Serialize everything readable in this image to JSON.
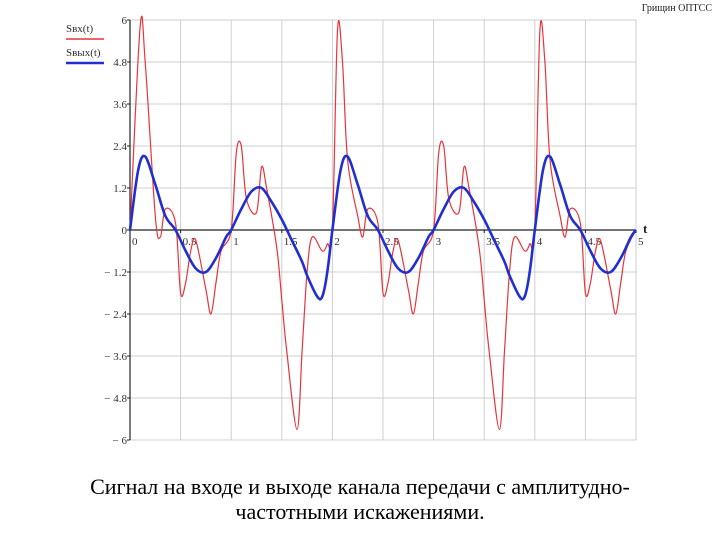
{
  "header": {
    "text": "Грищин ОПТСС"
  },
  "caption": {
    "line1": "Сигнал на входе и выходе канала передачи с амплитудно-",
    "line2": "частотными искажениями."
  },
  "chart_data": {
    "type": "line",
    "xlabel": "t",
    "xlim": [
      0,
      5
    ],
    "ylim": [
      -6,
      6
    ],
    "grid": true,
    "legend_position": "top-left",
    "x_ticks": [
      {
        "value": 0,
        "label": "0"
      },
      {
        "value": 0.5,
        "label": "0.5"
      },
      {
        "value": 1,
        "label": "1"
      },
      {
        "value": 1.5,
        "label": "1.5"
      },
      {
        "value": 2,
        "label": "2"
      },
      {
        "value": 2.5,
        "label": "2.5"
      },
      {
        "value": 3,
        "label": "3"
      },
      {
        "value": 3.5,
        "label": "3.5"
      },
      {
        "value": 4,
        "label": "4"
      },
      {
        "value": 4.5,
        "label": "4.5"
      },
      {
        "value": 5,
        "label": "5"
      }
    ],
    "y_ticks": [
      {
        "value": 6,
        "label": "6"
      },
      {
        "value": 4.8,
        "label": "4.8"
      },
      {
        "value": 3.6,
        "label": "3.6"
      },
      {
        "value": 2.4,
        "label": "2.4"
      },
      {
        "value": 1.2,
        "label": "1.2"
      },
      {
        "value": 0,
        "label": "0"
      },
      {
        "value": -1.2,
        "label": "− 1.2"
      },
      {
        "value": -2.4,
        "label": "− 2.4"
      },
      {
        "value": -3.6,
        "label": "− 3.6"
      },
      {
        "value": -4.8,
        "label": "− 4.8"
      },
      {
        "value": -6,
        "label": "− 6"
      }
    ],
    "series": [
      {
        "name": "Sвх(t)",
        "color": "#e8343a",
        "x": [
          0,
          0.1,
          0.15,
          0.25,
          0.3,
          0.35,
          0.45,
          0.5,
          0.55,
          0.6,
          0.65,
          0.75,
          0.8,
          0.85,
          0.9,
          1.0,
          1.05,
          1.1,
          1.15,
          1.25,
          1.3,
          1.35,
          1.45,
          1.5,
          1.55,
          1.65,
          1.7,
          1.75,
          1.8,
          1.9,
          1.95,
          2.0,
          2.05,
          2.1,
          2.15,
          2.25,
          2.3,
          2.35,
          2.45,
          2.5,
          2.55,
          2.6,
          2.65,
          2.75,
          2.8,
          2.85,
          2.9,
          3.0,
          3.05,
          3.1,
          3.15,
          3.25,
          3.3,
          3.35,
          3.45,
          3.5,
          3.55,
          3.65,
          3.7,
          3.75,
          3.8,
          3.9,
          3.95,
          4.0,
          4.05,
          4.1,
          4.15,
          4.25,
          4.3,
          4.35,
          4.45,
          4.5,
          4.55,
          4.6,
          4.65,
          4.75,
          4.8,
          4.85,
          4.9,
          5.0
        ],
        "values": [
          0,
          5.8,
          4.8,
          0.4,
          -0.2,
          0.6,
          0.2,
          -1.8,
          -1.5,
          -0.6,
          -0.3,
          -1.7,
          -2.4,
          -1.5,
          -0.6,
          0,
          2.2,
          2.4,
          0.9,
          0.5,
          1.8,
          1.2,
          -0.5,
          -2.0,
          -3.5,
          -5.7,
          -3.5,
          -1.2,
          -0.2,
          -0.6,
          -0.4,
          0,
          5.7,
          4.8,
          2.0,
          0.4,
          -0.2,
          0.6,
          0.2,
          -1.8,
          -1.5,
          -0.6,
          -0.3,
          -1.7,
          -2.4,
          -1.5,
          -0.6,
          0,
          2.2,
          2.4,
          0.9,
          0.5,
          1.8,
          1.2,
          -0.5,
          -2.0,
          -3.5,
          -5.7,
          -3.5,
          -1.2,
          -0.2,
          -0.6,
          -0.4,
          0,
          5.7,
          4.8,
          2.0,
          0.4,
          -0.2,
          0.6,
          0.2,
          -1.8,
          -1.5,
          -0.6,
          -0.3,
          -1.7,
          -2.4,
          -1.5,
          -0.6,
          0
        ]
      },
      {
        "name": "Sвых(t)",
        "color": "#1f2fd1",
        "x": [
          0,
          0.08,
          0.15,
          0.25,
          0.35,
          0.45,
          0.55,
          0.65,
          0.75,
          0.85,
          0.95,
          1.0,
          1.1,
          1.2,
          1.3,
          1.4,
          1.5,
          1.6,
          1.7,
          1.75,
          1.85,
          1.9,
          1.95,
          2.0,
          2.08,
          2.15,
          2.25,
          2.35,
          2.45,
          2.55,
          2.65,
          2.75,
          2.85,
          2.95,
          3.0,
          3.1,
          3.2,
          3.3,
          3.4,
          3.5,
          3.6,
          3.7,
          3.75,
          3.85,
          3.9,
          3.95,
          4.0,
          4.08,
          4.15,
          4.25,
          4.35,
          4.45,
          4.55,
          4.65,
          4.75,
          4.85,
          4.95,
          5.0
        ],
        "values": [
          0,
          1.7,
          2.1,
          1.3,
          0.4,
          0.0,
          -0.6,
          -1.1,
          -1.2,
          -0.8,
          -0.2,
          0,
          0.6,
          1.1,
          1.2,
          0.8,
          0.3,
          -0.3,
          -0.9,
          -1.3,
          -1.9,
          -1.9,
          -1.2,
          0,
          1.7,
          2.1,
          1.3,
          0.4,
          0.0,
          -0.6,
          -1.1,
          -1.2,
          -0.8,
          -0.2,
          0,
          0.6,
          1.1,
          1.2,
          0.8,
          0.3,
          -0.3,
          -0.9,
          -1.3,
          -1.9,
          -1.9,
          -1.2,
          0,
          1.7,
          2.1,
          1.3,
          0.4,
          0.0,
          -0.6,
          -1.1,
          -1.2,
          -0.8,
          -0.2,
          0
        ]
      }
    ]
  }
}
